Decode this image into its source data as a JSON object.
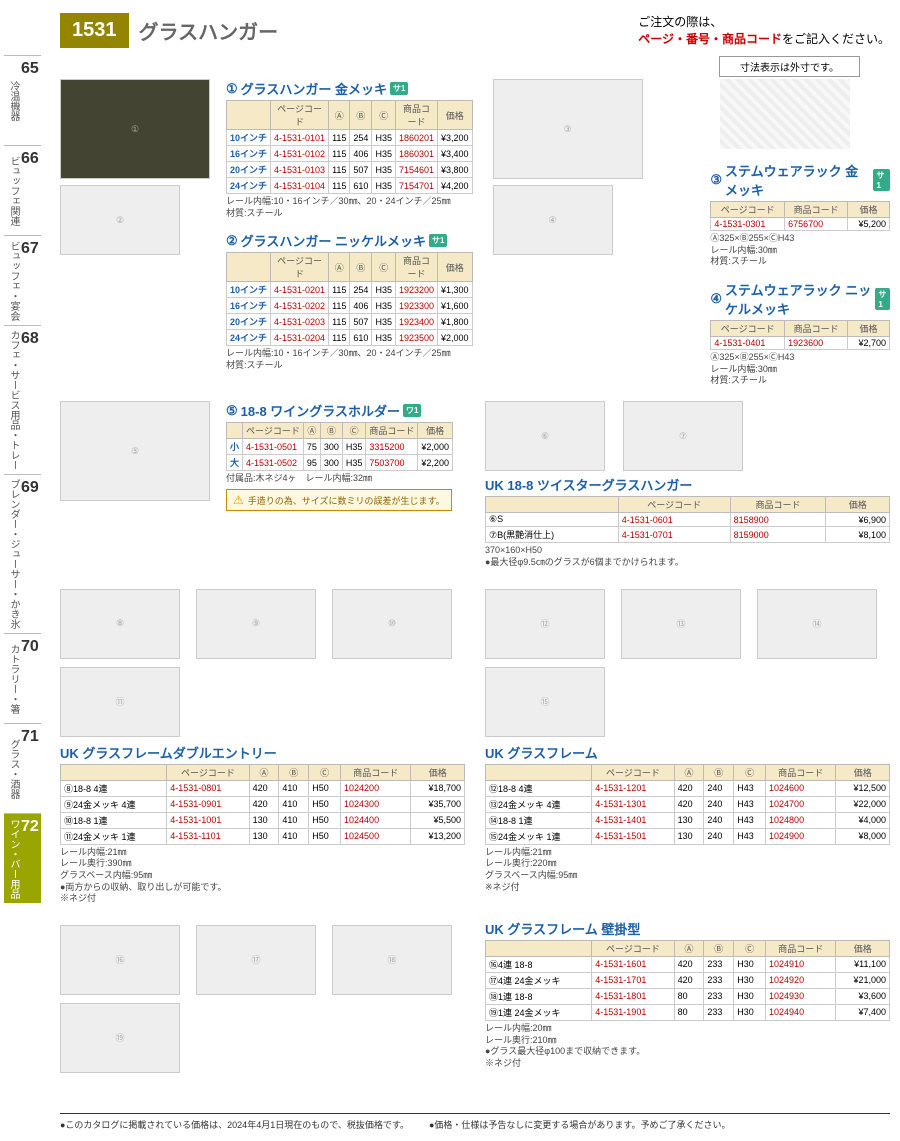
{
  "header": {
    "page_number": "1531",
    "title": "グラスハンガー",
    "order_note_1": "ご注文の際は、",
    "order_note_2": "ページ・番号・商品コード",
    "order_note_3": "をご記入ください。",
    "dim_note": "寸法表示は外寸です。"
  },
  "sidebar": [
    {
      "num": "65",
      "label": "冷温機器"
    },
    {
      "num": "66",
      "label": "ビュッフェ関連"
    },
    {
      "num": "67",
      "label": "ビュッフェ・宴会"
    },
    {
      "num": "68",
      "label": "カフェ・サービス用品・トレー"
    },
    {
      "num": "69",
      "label": "ブレンダー・ジューサー・かき氷"
    },
    {
      "num": "70",
      "label": "カトラリー・箸"
    },
    {
      "num": "71",
      "label": "グラス・酒器"
    },
    {
      "num": "72",
      "label": "ワイン・バー用品",
      "active": true
    }
  ],
  "spec_header": {
    "page": "ページコード",
    "a": "Ⓐ",
    "b": "Ⓑ",
    "c": "Ⓒ",
    "code": "商品コード",
    "price": "価格",
    "size": ""
  },
  "p1": {
    "num": "①",
    "title": "グラスハンガー 金メッキ",
    "tag": "サ1",
    "rows": [
      {
        "size": "10インチ",
        "page": "4-1531-0101",
        "dims": "115×254×H35",
        "code": "1860201",
        "price": "¥3,200"
      },
      {
        "size": "16インチ",
        "page": "4-1531-0102",
        "dims": "115×406×H35",
        "code": "1860301",
        "price": "¥3,400"
      },
      {
        "size": "20インチ",
        "page": "4-1531-0103",
        "dims": "115×507×H35",
        "code": "7154601",
        "price": "¥3,800"
      },
      {
        "size": "24インチ",
        "page": "4-1531-0104",
        "dims": "115×610×H35",
        "code": "7154701",
        "price": "¥4,200"
      }
    ],
    "note": "レール内幅:10・16インチ／30㎜、20・24インチ／25㎜\n材質:スチール"
  },
  "p2": {
    "num": "②",
    "title": "グラスハンガー ニッケルメッキ",
    "tag": "サ1",
    "rows": [
      {
        "size": "10インチ",
        "page": "4-1531-0201",
        "dims": "115×254×H35",
        "code": "1923200",
        "price": "¥1,300"
      },
      {
        "size": "16インチ",
        "page": "4-1531-0202",
        "dims": "115×406×H35",
        "code": "1923300",
        "price": "¥1,600"
      },
      {
        "size": "20インチ",
        "page": "4-1531-0203",
        "dims": "115×507×H35",
        "code": "1923400",
        "price": "¥1,800"
      },
      {
        "size": "24インチ",
        "page": "4-1531-0204",
        "dims": "115×610×H35",
        "code": "1923500",
        "price": "¥2,000"
      }
    ],
    "note": "レール内幅:10・16インチ／30㎜、20・24インチ／25㎜\n材質:スチール"
  },
  "p3": {
    "num": "③",
    "title": "ステムウェアラック 金メッキ",
    "tag": "サ1",
    "rows": [
      {
        "page": "4-1531-0301",
        "code": "6756700",
        "price": "¥5,200"
      }
    ],
    "note": "Ⓐ325×Ⓑ255×ⒸH43\nレール内幅:30㎜\n材質:スチール"
  },
  "p4": {
    "num": "④",
    "title": "ステムウェアラック ニッケルメッキ",
    "tag": "サ1",
    "rows": [
      {
        "page": "4-1531-0401",
        "code": "1923600",
        "price": "¥2,700"
      }
    ],
    "note": "Ⓐ325×Ⓑ255×ⒸH43\nレール内幅:30㎜\n材質:スチール"
  },
  "p5": {
    "num": "⑤",
    "title": "18-8 ワイングラスホルダー",
    "tag": "ワ1",
    "rows": [
      {
        "size": "小",
        "page": "4-1531-0501",
        "dims": "75×300×H35",
        "code": "3315200",
        "price": "¥2,000"
      },
      {
        "size": "大",
        "page": "4-1531-0502",
        "dims": "95×300×H35",
        "code": "7503700",
        "price": "¥2,200"
      }
    ],
    "note": "付属品:木ネジ4ヶ　レール内幅:32㎜",
    "warn": "手造りの為、サイズに数ミリの誤差が生じます。"
  },
  "p6": {
    "title": "UK 18-8 ツイスターグラスハンガー",
    "rows": [
      {
        "num": "⑥",
        "size": "S",
        "page": "4-1531-0601",
        "code": "8158900",
        "price": "¥6,900"
      },
      {
        "num": "⑦",
        "size": "B(黒艶消仕上)",
        "page": "4-1531-0701",
        "code": "8159000",
        "price": "¥8,100"
      }
    ],
    "note": "370×160×H50\n●最大径φ9.5㎝のグラスが6個までかけられます。"
  },
  "p7": {
    "title": "UK グラスフレームダブルエントリー",
    "rows": [
      {
        "num": "⑧",
        "size": "18-8 4連",
        "page": "4-1531-0801",
        "dims": "420×410×H50",
        "code": "1024200",
        "price": "¥18,700"
      },
      {
        "num": "⑨",
        "size": "24金メッキ 4連",
        "page": "4-1531-0901",
        "dims": "420×410×H50",
        "code": "1024300",
        "price": "¥35,700"
      },
      {
        "num": "⑩",
        "size": "18-8 1連",
        "page": "4-1531-1001",
        "dims": "130×410×H50",
        "code": "1024400",
        "price": "¥5,500"
      },
      {
        "num": "⑪",
        "size": "24金メッキ 1連",
        "page": "4-1531-1101",
        "dims": "130×410×H50",
        "code": "1024500",
        "price": "¥13,200"
      }
    ],
    "note": "レール内幅:21㎜\nレール奥行:390㎜\nグラスベース内幅:95㎜\n●両方からの収納、取り出しが可能です。\n※ネジ付"
  },
  "p8": {
    "title": "UK グラスフレーム",
    "rows": [
      {
        "num": "⑫",
        "size": "18-8 4連",
        "page": "4-1531-1201",
        "dims": "420×240×H43",
        "code": "1024600",
        "price": "¥12,500"
      },
      {
        "num": "⑬",
        "size": "24金メッキ 4連",
        "page": "4-1531-1301",
        "dims": "420×240×H43",
        "code": "1024700",
        "price": "¥22,000"
      },
      {
        "num": "⑭",
        "size": "18-8 1連",
        "page": "4-1531-1401",
        "dims": "130×240×H43",
        "code": "1024800",
        "price": "¥4,000"
      },
      {
        "num": "⑮",
        "size": "24金メッキ 1連",
        "page": "4-1531-1501",
        "dims": "130×240×H43",
        "code": "1024900",
        "price": "¥8,000"
      }
    ],
    "note": "レール内幅:21㎜\nレール奥行:220㎜\nグラスベース内幅:95㎜\n※ネジ付"
  },
  "p9": {
    "title": "UK グラスフレーム 壁掛型",
    "rows": [
      {
        "num": "⑯",
        "size": "4連 18-8",
        "page": "4-1531-1601",
        "dims": "420×233×H30",
        "code": "1024910",
        "price": "¥11,100"
      },
      {
        "num": "⑰",
        "size": "4連 24金メッキ",
        "page": "4-1531-1701",
        "dims": "420×233×H30",
        "code": "1024920",
        "price": "¥21,000"
      },
      {
        "num": "⑱",
        "size": "1連 18-8",
        "page": "4-1531-1801",
        "dims": "80×233×H30",
        "code": "1024930",
        "price": "¥3,600"
      },
      {
        "num": "⑲",
        "size": "1連 24金メッキ",
        "page": "4-1531-1901",
        "dims": "80×233×H30",
        "code": "1024940",
        "price": "¥7,400"
      }
    ],
    "note": "レール内幅:20㎜\nレール奥行:210㎜\n●グラス最大径φ100まで収納できます。\n※ネジ付"
  },
  "footer": {
    "l": "●このカタログに掲載されている価格は、2024年4月1日現在のもので、税抜価格です。",
    "r": "●価格・仕様は予告なしに変更する場合があります。予めご了承ください。"
  }
}
